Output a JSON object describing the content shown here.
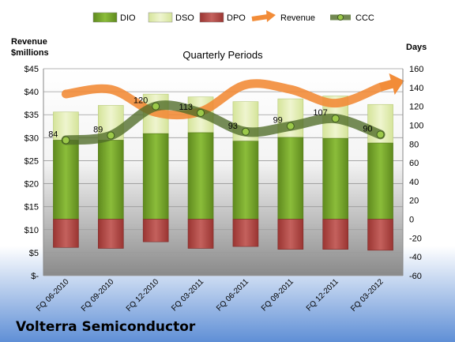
{
  "company": "Volterra Semiconductor",
  "chart_data": {
    "type": "bar",
    "title": "Quarterly Periods",
    "left_axis_label": [
      "Revenue",
      "$millions"
    ],
    "right_axis_label": "Days",
    "categories": [
      "FQ 06-2010",
      "FQ 09-2010",
      "FQ 12-2010",
      "FQ 03-2011",
      "FQ 06-2011",
      "FQ 09-2011",
      "FQ 12-2011",
      "FQ 03-2012"
    ],
    "left_ylim": [
      0,
      45
    ],
    "left_ticks": [
      "$-",
      "$5",
      "$10",
      "$15",
      "$20",
      "$25",
      "$30",
      "$35",
      "$40",
      "$45"
    ],
    "right_ylim": [
      -60,
      160
    ],
    "right_ticks": [
      "-60",
      "-40",
      "-20",
      "0",
      "20",
      "40",
      "60",
      "80",
      "100",
      "120",
      "140",
      "160"
    ],
    "legend": [
      "DIO",
      "DSO",
      "DPO",
      "Revenue",
      "CCC"
    ],
    "legend_position": "top",
    "grid": true,
    "series": [
      {
        "name": "DIO",
        "axis": "right",
        "values": [
          84,
          84,
          91,
          92,
          83,
          87,
          86,
          81
        ]
      },
      {
        "name": "DSO",
        "axis": "right",
        "values": [
          30,
          37,
          42,
          38,
          42,
          41,
          45,
          41
        ]
      },
      {
        "name": "DPO",
        "axis": "right",
        "values": [
          -30,
          -31,
          -24,
          -31,
          -29,
          -32,
          -32,
          -33
        ]
      },
      {
        "name": "Revenue",
        "axis": "left",
        "values": [
          39.5,
          40.5,
          35.5,
          35.7,
          41.5,
          40.5,
          37.5,
          41.0
        ]
      },
      {
        "name": "CCC",
        "axis": "right",
        "values": [
          84,
          89,
          120,
          113,
          93,
          99,
          107,
          90
        ]
      }
    ],
    "data_labels": [
      "84",
      "89",
      "120",
      "113",
      "93",
      "99",
      "107",
      "90"
    ],
    "colors": {
      "DIO": "#7daa2f",
      "DSO": "#e3eeb5",
      "DPO": "#c0504d",
      "Revenue": "#f28c38",
      "CCC": "#4f6b28"
    }
  }
}
